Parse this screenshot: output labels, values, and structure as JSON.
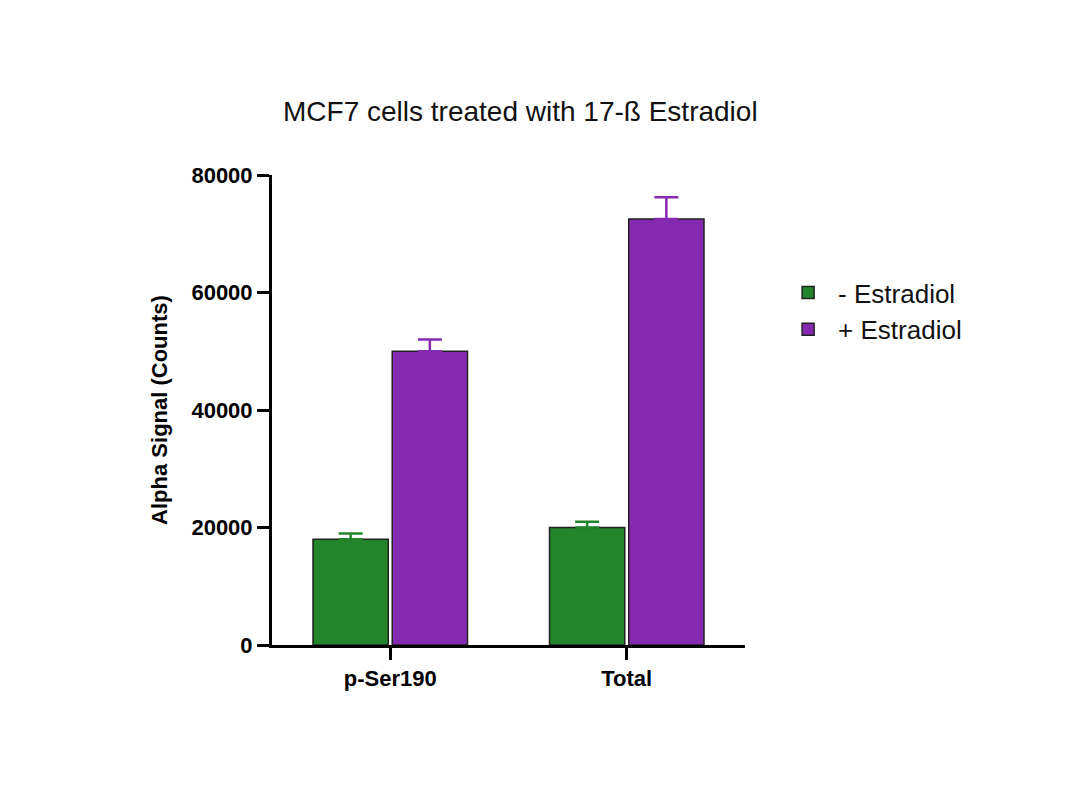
{
  "chart_data": {
    "type": "bar",
    "title": "MCF7 cells treated with 17-ß Estradiol",
    "y_label": "Alpha Signal (Counts)",
    "categories": [
      "p-Ser190",
      "Total"
    ],
    "series": [
      {
        "name": "- Estradiol",
        "color": "#23852b",
        "values": [
          18000,
          20000
        ],
        "error": [
          1000,
          1000
        ]
      },
      {
        "name": "+ Estradiol",
        "color": "#8629b1",
        "values": [
          50000,
          72500
        ],
        "error": [
          2000,
          3700
        ]
      }
    ],
    "ylim": [
      0,
      80000
    ],
    "yticks": [
      0,
      20000,
      40000,
      60000,
      80000
    ],
    "grid": false,
    "legend": "right"
  }
}
